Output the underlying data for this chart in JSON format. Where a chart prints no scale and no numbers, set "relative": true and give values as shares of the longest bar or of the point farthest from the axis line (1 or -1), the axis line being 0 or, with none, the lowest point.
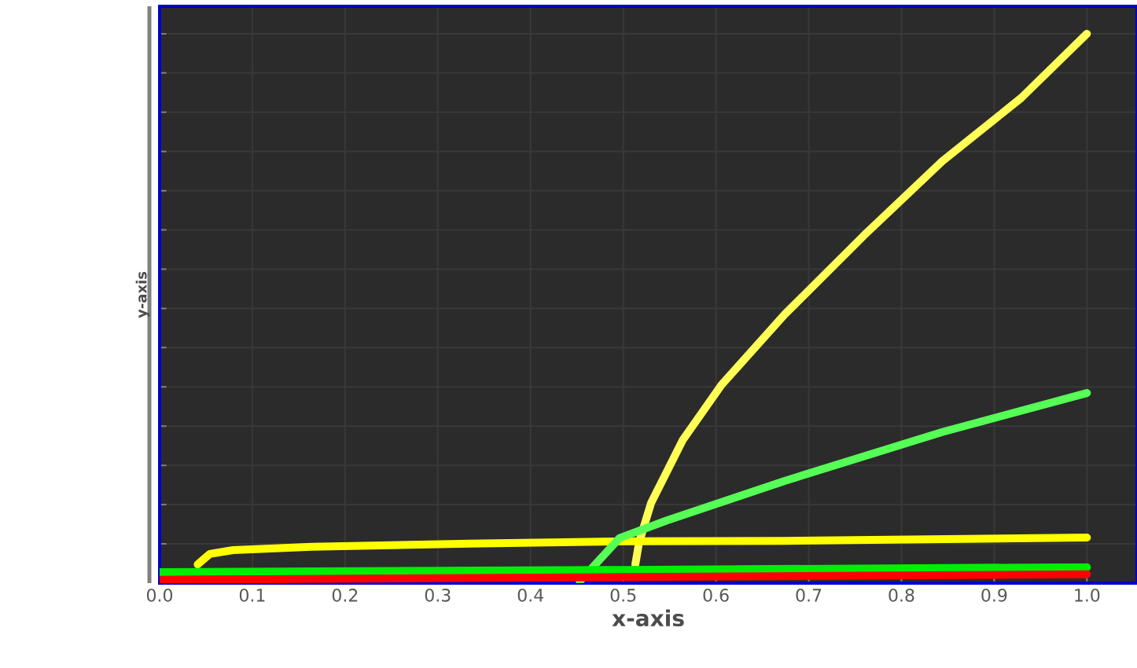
{
  "chart_data": {
    "type": "line",
    "relative": true,
    "xlabel": "x-axis",
    "ylabel": "y-axis",
    "xlim": [
      0,
      1.054
    ],
    "xticks": [
      {
        "value": 0,
        "label": "0.0"
      },
      0.1,
      0.2,
      0.3,
      0.4,
      0.5,
      0.6,
      0.7,
      0.8,
      0.9,
      {
        "value": 1,
        "label": "1.0"
      }
    ],
    "grid": true,
    "tick_labels": "x",
    "marker": "none",
    "line_style": "solid",
    "series": [
      {
        "color": "#ffff55",
        "x": [
          0.513,
          0.517,
          0.53,
          0.564,
          0.606,
          0.674,
          0.759,
          0.844,
          0.929,
          1.0
        ],
        "values": [
          0.034,
          0.074,
          0.146,
          0.26,
          0.361,
          0.489,
          0.632,
          0.768,
          0.883,
          1.0
        ]
      },
      {
        "color": "#ffff00",
        "x": [
          0.041,
          0.054,
          0.079,
          0.164,
          0.334,
          0.504,
          0.674,
          1.0
        ],
        "values": [
          0.034,
          0.053,
          0.06,
          0.066,
          0.072,
          0.076,
          0.077,
          0.083
        ]
      },
      {
        "color": "#55ff55",
        "x": [
          0.453,
          0.496,
          0.547,
          0.674,
          0.844,
          1.0
        ],
        "values": [
          0.003,
          0.082,
          0.114,
          0.186,
          0.275,
          0.346
        ]
      },
      {
        "color": "#00ee00",
        "x": [
          0,
          0.5,
          1.0
        ],
        "values": [
          0.02,
          0.024,
          0.029
        ]
      },
      {
        "color": "#ff0000",
        "x": [
          0,
          0.5,
          1.0
        ],
        "values": [
          0.006,
          0.011,
          0.016
        ]
      }
    ]
  }
}
